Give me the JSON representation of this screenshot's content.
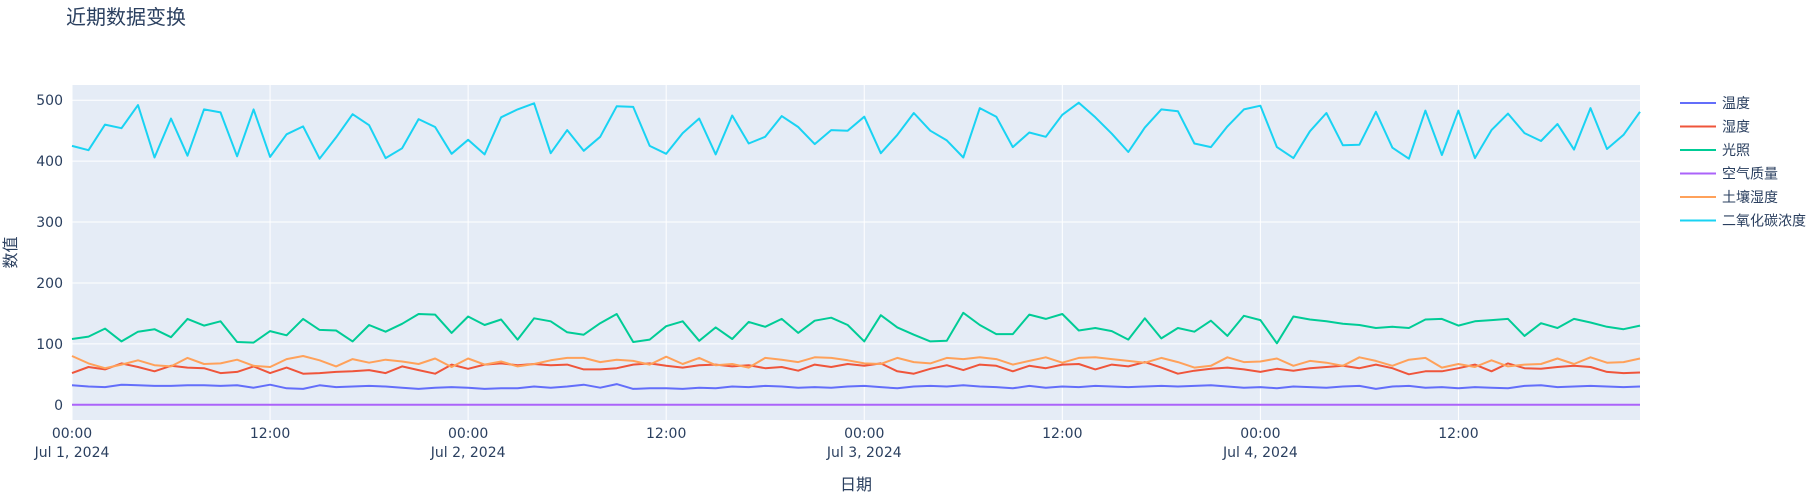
{
  "chart_data": {
    "type": "line",
    "title": "近期数据变换",
    "xlabel": "日期",
    "ylabel": "数值",
    "ylim": [
      -25,
      525
    ],
    "xlim": [
      "2024-07-01T00:00",
      "2024-07-04T23:00"
    ],
    "yticks": [
      0,
      100,
      200,
      300,
      400,
      500
    ],
    "xticks": [
      {
        "at": "2024-07-01T00:00",
        "line1": "00:00",
        "line2": "Jul 1, 2024"
      },
      {
        "at": "2024-07-01T12:00",
        "line1": "12:00",
        "line2": ""
      },
      {
        "at": "2024-07-02T00:00",
        "line1": "00:00",
        "line2": "Jul 2, 2024"
      },
      {
        "at": "2024-07-02T12:00",
        "line1": "12:00",
        "line2": ""
      },
      {
        "at": "2024-07-03T00:00",
        "line1": "00:00",
        "line2": "Jul 3, 2024"
      },
      {
        "at": "2024-07-03T12:00",
        "line1": "12:00",
        "line2": ""
      },
      {
        "at": "2024-07-04T00:00",
        "line1": "00:00",
        "line2": "Jul 4, 2024"
      },
      {
        "at": "2024-07-04T12:00",
        "line1": "12:00",
        "line2": ""
      }
    ],
    "grid": true,
    "legend_position": "right",
    "plot_background": "#e5ecf6",
    "x": [
      "2024-07-01T00:00",
      "2024-07-01T01:00",
      "2024-07-01T02:00",
      "2024-07-01T03:00",
      "2024-07-01T04:00",
      "2024-07-01T05:00",
      "2024-07-01T06:00",
      "2024-07-01T07:00",
      "2024-07-01T08:00",
      "2024-07-01T09:00",
      "2024-07-01T10:00",
      "2024-07-01T11:00",
      "2024-07-01T12:00",
      "2024-07-01T13:00",
      "2024-07-01T14:00",
      "2024-07-01T15:00",
      "2024-07-01T16:00",
      "2024-07-01T17:00",
      "2024-07-01T18:00",
      "2024-07-01T19:00",
      "2024-07-01T20:00",
      "2024-07-01T21:00",
      "2024-07-01T22:00",
      "2024-07-01T23:00",
      "2024-07-02T00:00",
      "2024-07-02T01:00",
      "2024-07-02T02:00",
      "2024-07-02T03:00",
      "2024-07-02T04:00",
      "2024-07-02T05:00",
      "2024-07-02T06:00",
      "2024-07-02T07:00",
      "2024-07-02T08:00",
      "2024-07-02T09:00",
      "2024-07-02T10:00",
      "2024-07-02T11:00",
      "2024-07-02T12:00",
      "2024-07-02T13:00",
      "2024-07-02T14:00",
      "2024-07-02T15:00",
      "2024-07-02T16:00",
      "2024-07-02T17:00",
      "2024-07-02T18:00",
      "2024-07-02T19:00",
      "2024-07-02T20:00",
      "2024-07-02T21:00",
      "2024-07-02T22:00",
      "2024-07-02T23:00",
      "2024-07-03T00:00",
      "2024-07-03T01:00",
      "2024-07-03T02:00",
      "2024-07-03T03:00",
      "2024-07-03T04:00",
      "2024-07-03T05:00",
      "2024-07-03T06:00",
      "2024-07-03T07:00",
      "2024-07-03T08:00",
      "2024-07-03T09:00",
      "2024-07-03T10:00",
      "2024-07-03T11:00",
      "2024-07-03T12:00",
      "2024-07-03T13:00",
      "2024-07-03T14:00",
      "2024-07-03T15:00",
      "2024-07-03T16:00",
      "2024-07-03T17:00",
      "2024-07-03T18:00",
      "2024-07-03T19:00",
      "2024-07-03T20:00",
      "2024-07-03T21:00",
      "2024-07-03T22:00",
      "2024-07-03T23:00",
      "2024-07-04T00:00",
      "2024-07-04T01:00",
      "2024-07-04T02:00",
      "2024-07-04T03:00",
      "2024-07-04T04:00",
      "2024-07-04T05:00",
      "2024-07-04T06:00",
      "2024-07-04T07:00",
      "2024-07-04T08:00",
      "2024-07-04T09:00",
      "2024-07-04T10:00",
      "2024-07-04T11:00",
      "2024-07-04T12:00",
      "2024-07-04T13:00",
      "2024-07-04T14:00",
      "2024-07-04T15:00",
      "2024-07-04T16:00",
      "2024-07-04T17:00",
      "2024-07-04T18:00",
      "2024-07-04T19:00",
      "2024-07-04T20:00",
      "2024-07-04T21:00",
      "2024-07-04T22:00",
      "2024-07-04T23:00"
    ],
    "series": [
      {
        "name": "温度",
        "color": "#636efa",
        "values": [
          32,
          30,
          29,
          33,
          32,
          31,
          31,
          32,
          32,
          31,
          32,
          28,
          33,
          27,
          26,
          32,
          29,
          30,
          31,
          30,
          28,
          26,
          28,
          29,
          28,
          26,
          27,
          27,
          30,
          28,
          30,
          33,
          28,
          34,
          26,
          27,
          27,
          26,
          28,
          27,
          30,
          29,
          31,
          30,
          28,
          29,
          28,
          30,
          31,
          29,
          27,
          30,
          31,
          30,
          32,
          30,
          29,
          27,
          31,
          28,
          30,
          29,
          31,
          30,
          29,
          30,
          31,
          30,
          31,
          32,
          30,
          28,
          29,
          27,
          30,
          29,
          28,
          30,
          31,
          26,
          30,
          31,
          28,
          29,
          27,
          29,
          28,
          27,
          31,
          32,
          29,
          30,
          31,
          30,
          29,
          30
        ]
      },
      {
        "name": "湿度",
        "color": "#ef553b",
        "values": [
          52,
          62,
          58,
          68,
          62,
          55,
          64,
          61,
          60,
          52,
          54,
          63,
          52,
          61,
          51,
          52,
          54,
          55,
          57,
          52,
          63,
          57,
          51,
          66,
          59,
          66,
          68,
          65,
          67,
          65,
          66,
          58,
          58,
          60,
          66,
          68,
          64,
          61,
          65,
          66,
          63,
          65,
          60,
          62,
          56,
          66,
          62,
          67,
          64,
          68,
          55,
          51,
          59,
          65,
          57,
          66,
          64,
          55,
          64,
          60,
          66,
          67,
          58,
          66,
          63,
          70,
          61,
          51,
          56,
          59,
          61,
          58,
          54,
          59,
          56,
          60,
          62,
          64,
          60,
          66,
          60,
          50,
          55,
          55,
          60,
          66,
          55,
          68,
          60,
          59,
          62,
          64,
          62,
          54,
          52,
          53
        ]
      },
      {
        "name": "光照",
        "color": "#00cc96",
        "values": [
          108,
          112,
          125,
          104,
          120,
          124,
          111,
          141,
          130,
          137,
          103,
          102,
          121,
          114,
          141,
          123,
          122,
          104,
          131,
          120,
          133,
          149,
          148,
          118,
          145,
          131,
          140,
          107,
          142,
          137,
          119,
          115,
          134,
          149,
          103,
          107,
          129,
          137,
          105,
          127,
          108,
          136,
          128,
          141,
          118,
          138,
          143,
          131,
          104,
          147,
          127,
          115,
          104,
          105,
          151,
          131,
          116,
          116,
          148,
          141,
          149,
          122,
          126,
          121,
          107,
          142,
          109,
          126,
          120,
          138,
          113,
          146,
          139,
          101,
          145,
          140,
          137,
          133,
          131,
          126,
          128,
          126,
          140,
          141,
          130,
          137,
          139,
          141,
          113,
          134,
          126,
          141,
          135,
          128,
          124,
          130
        ]
      },
      {
        "name": "空气质量",
        "color": "#ab63fa",
        "values": [
          0,
          0,
          0,
          0,
          0,
          0,
          0,
          0,
          0,
          0,
          0,
          0,
          0,
          0,
          0,
          0,
          0,
          0,
          0,
          0,
          0,
          0,
          0,
          0,
          0,
          0,
          0,
          0,
          0,
          0,
          0,
          0,
          0,
          0,
          0,
          0,
          0,
          0,
          0,
          0,
          0,
          0,
          0,
          0,
          0,
          0,
          0,
          0,
          0,
          0,
          0,
          0,
          0,
          0,
          0,
          0,
          0,
          0,
          0,
          0,
          0,
          0,
          0,
          0,
          0,
          0,
          0,
          0,
          0,
          0,
          0,
          0,
          0,
          0,
          0,
          0,
          0,
          0,
          0,
          0,
          0,
          0,
          0,
          0,
          0,
          0,
          0,
          0,
          0,
          0,
          0,
          0,
          0,
          0,
          0,
          0
        ]
      },
      {
        "name": "土壤湿度",
        "color": "#ffa15a",
        "values": [
          80,
          68,
          60,
          66,
          73,
          65,
          63,
          77,
          67,
          68,
          74,
          64,
          62,
          75,
          80,
          73,
          63,
          75,
          69,
          74,
          71,
          67,
          76,
          62,
          76,
          66,
          71,
          63,
          67,
          73,
          77,
          77,
          70,
          74,
          72,
          66,
          79,
          67,
          77,
          65,
          67,
          61,
          77,
          74,
          70,
          78,
          77,
          73,
          68,
          67,
          77,
          70,
          68,
          77,
          75,
          78,
          75,
          66,
          72,
          78,
          69,
          77,
          78,
          75,
          72,
          69,
          77,
          70,
          61,
          64,
          78,
          70,
          71,
          76,
          64,
          72,
          69,
          64,
          78,
          72,
          64,
          74,
          77,
          61,
          67,
          62,
          73,
          63,
          66,
          67,
          76,
          67,
          78,
          69,
          70,
          76
        ]
      },
      {
        "name": "二氧化碳浓度",
        "color": "#19d3f3",
        "values": [
          425,
          418,
          460,
          454,
          492,
          406,
          470,
          409,
          485,
          480,
          408,
          485,
          407,
          444,
          457,
          404,
          439,
          477,
          459,
          405,
          421,
          469,
          456,
          412,
          435,
          411,
          472,
          485,
          495,
          413,
          451,
          417,
          440,
          490,
          489,
          425,
          412,
          446,
          470,
          411,
          475,
          429,
          440,
          474,
          456,
          428,
          451,
          450,
          473,
          413,
          443,
          479,
          450,
          434,
          406,
          487,
          473,
          423,
          447,
          440,
          476,
          496,
          472,
          445,
          415,
          455,
          485,
          482,
          429,
          423,
          457,
          485,
          491,
          423,
          405,
          449,
          479,
          426,
          427,
          481,
          422,
          404,
          483,
          410,
          483,
          405,
          451,
          478,
          446,
          433,
          461,
          419,
          487,
          420,
          443,
          481
        ]
      }
    ]
  }
}
